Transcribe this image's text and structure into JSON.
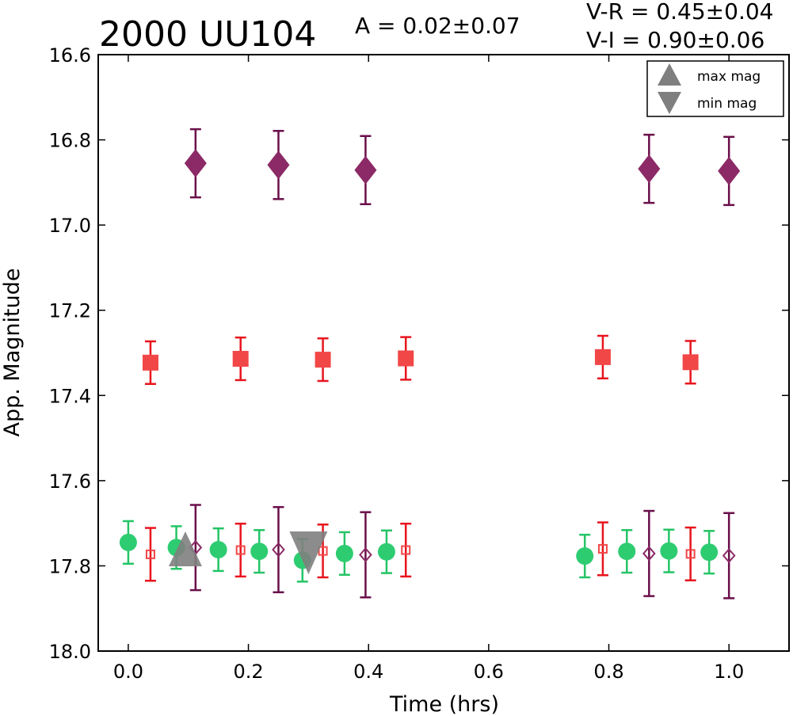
{
  "chart_data": {
    "type": "scatter",
    "title": "2000 UU104",
    "annotations": {
      "amplitude": "A  = 0.02±0.07",
      "v_r": "V-R = 0.45±0.04",
      "v_i": "V-I  = 0.90±0.06"
    },
    "xlabel": "Time (hrs)",
    "ylabel": "App. Magnitude",
    "xlim": [
      -0.05,
      1.1
    ],
    "ylim": [
      16.6,
      18.0
    ],
    "y_inverted": true,
    "grid": false,
    "xticks": [
      "0.0",
      "0.2",
      "0.4",
      "0.6",
      "0.8",
      "1.0"
    ],
    "yticks": [
      "16.6",
      "16.8",
      "17.0",
      "17.2",
      "17.4",
      "17.6",
      "17.8",
      "18.0"
    ],
    "legend": {
      "placement": "top-right",
      "entries": [
        {
          "label": "max mag",
          "marker": "triangle-up",
          "color": "#7f7f7f"
        },
        {
          "label": "min mag",
          "marker": "triangle-down",
          "color": "#7f7f7f"
        }
      ]
    },
    "series": [
      {
        "marker": "diamond",
        "filled": true,
        "color": "#8b2a66",
        "err_color": "#6a0f4a",
        "x": [
          0.112,
          0.25,
          0.395,
          0.867,
          1.0
        ],
        "y": [
          16.855,
          16.859,
          16.871,
          16.868,
          16.873
        ],
        "err": [
          0.08,
          0.08,
          0.08,
          0.08,
          0.08
        ]
      },
      {
        "marker": "square",
        "filled": true,
        "color": "#f24747",
        "err_color": "#e8141d",
        "x": [
          0.037,
          0.187,
          0.324,
          0.462,
          0.79,
          0.936
        ],
        "y": [
          17.323,
          17.314,
          17.316,
          17.313,
          17.31,
          17.322
        ],
        "err": [
          0.05,
          0.05,
          0.05,
          0.05,
          0.05,
          0.05
        ]
      },
      {
        "marker": "circle",
        "filled": true,
        "color": "#2ecc71",
        "err_color": "#24c466",
        "x": [
          0.0,
          0.08,
          0.15,
          0.218,
          0.29,
          0.36,
          0.43,
          0.76,
          0.83,
          0.9,
          0.967
        ],
        "y": [
          17.745,
          17.757,
          17.762,
          17.766,
          17.787,
          17.771,
          17.767,
          17.777,
          17.766,
          17.765,
          17.768
        ],
        "err": [
          0.05,
          0.05,
          0.05,
          0.05,
          0.05,
          0.05,
          0.05,
          0.05,
          0.05,
          0.05,
          0.05
        ]
      },
      {
        "marker": "square",
        "filled": false,
        "color": "#f24747",
        "err_color": "#e8141d",
        "x": [
          0.037,
          0.187,
          0.324,
          0.462,
          0.79,
          0.936
        ],
        "y": [
          17.773,
          17.763,
          17.765,
          17.763,
          17.76,
          17.772
        ],
        "err": [
          0.062,
          0.062,
          0.062,
          0.062,
          0.062,
          0.062
        ]
      },
      {
        "marker": "diamond",
        "filled": false,
        "color": "#8b2a66",
        "err_color": "#6a0f4a",
        "x": [
          0.112,
          0.25,
          0.395,
          0.867,
          1.0
        ],
        "y": [
          17.757,
          17.762,
          17.774,
          17.771,
          17.776
        ],
        "err": [
          0.1,
          0.1,
          0.1,
          0.1,
          0.1
        ]
      },
      {
        "name": "max mag",
        "marker": "triangle-up",
        "filled": true,
        "color": "#7f7f7f",
        "x": [
          0.095
        ],
        "y": [
          17.775
        ]
      },
      {
        "name": "min mag",
        "marker": "triangle-down",
        "filled": true,
        "color": "#7f7f7f",
        "x": [
          0.3
        ],
        "y": [
          17.775
        ]
      }
    ]
  }
}
